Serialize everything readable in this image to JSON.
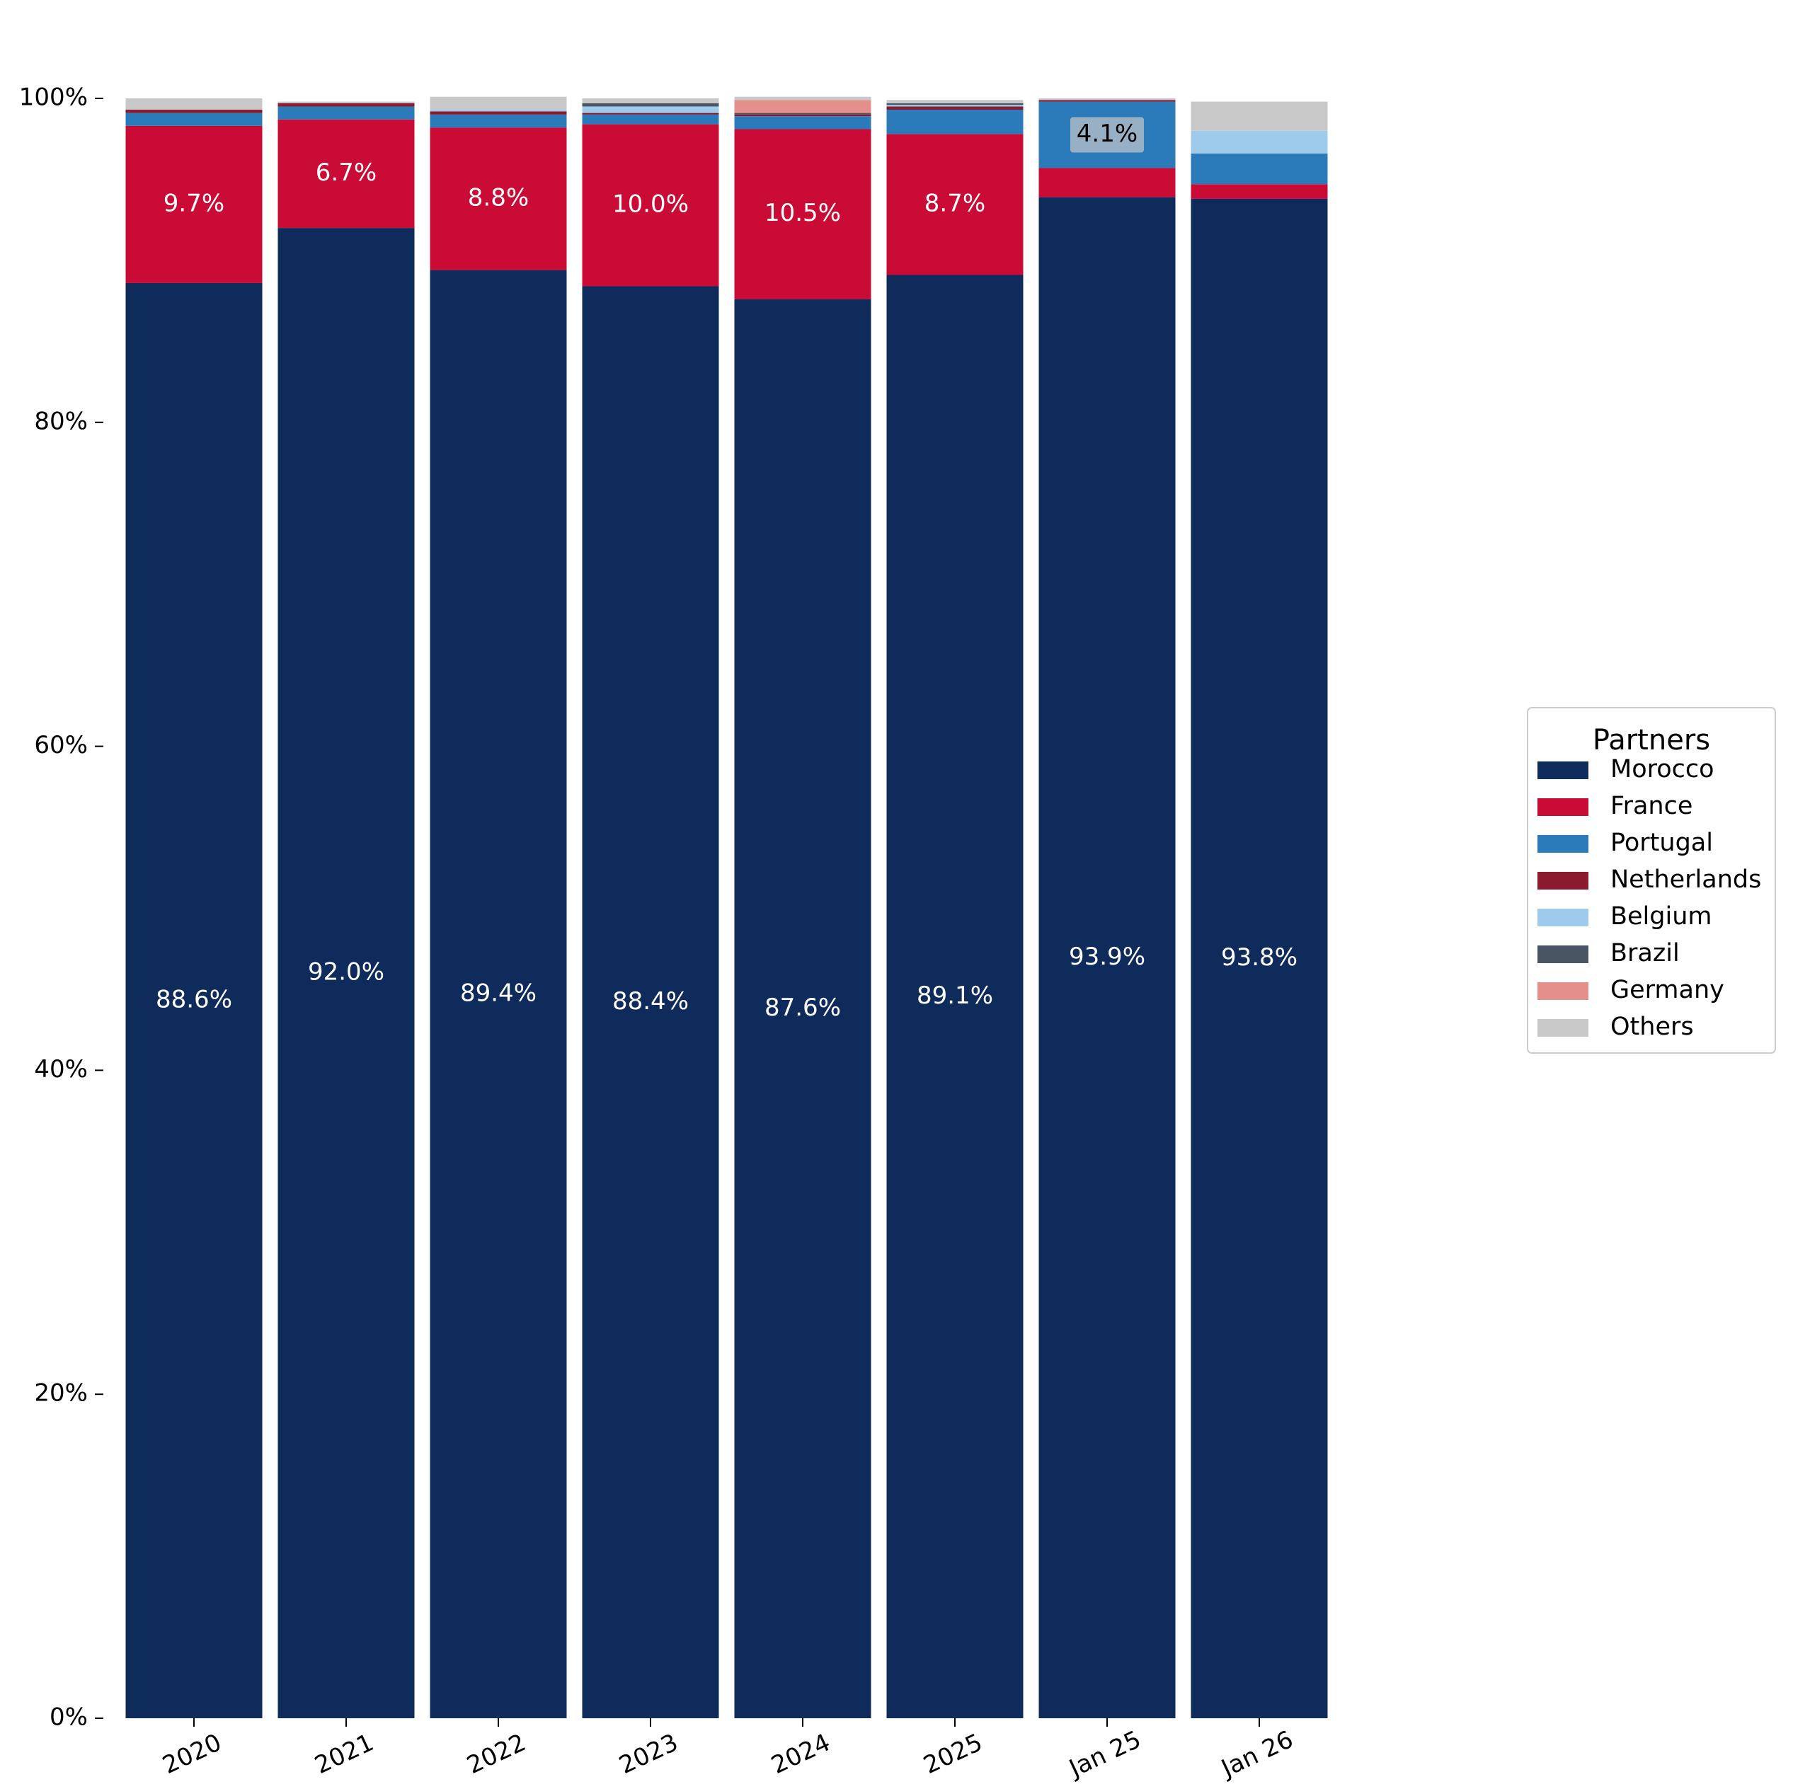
{
  "chart_data": {
    "type": "bar",
    "stacked": true,
    "categories": [
      "2020",
      "2021",
      "2022",
      "2023",
      "2024",
      "2025",
      "Jan 25",
      "Jan 26"
    ],
    "ylim": [
      0,
      100
    ],
    "y_ticks": [
      0,
      20,
      40,
      60,
      80,
      100
    ],
    "y_tick_labels": [
      "0%",
      "20%",
      "40%",
      "60%",
      "80%",
      "100%"
    ],
    "title": "",
    "xlabel": "",
    "ylabel": "",
    "grid": false,
    "legend": {
      "title": "Partners",
      "placement": "right"
    },
    "series": [
      {
        "name": "Morocco",
        "color": "#0e2b5c",
        "values": [
          88.6,
          92.0,
          89.4,
          88.4,
          87.6,
          89.1,
          93.9,
          93.8
        ]
      },
      {
        "name": "France",
        "color": "#c90b35",
        "values": [
          9.7,
          6.7,
          8.8,
          10.0,
          10.5,
          8.7,
          1.8,
          0.9
        ]
      },
      {
        "name": "Portugal",
        "color": "#2b7bbb",
        "values": [
          0.8,
          0.8,
          0.8,
          0.6,
          0.8,
          1.5,
          4.1,
          1.9
        ]
      },
      {
        "name": "Netherlands",
        "color": "#8b1a2e",
        "values": [
          0.2,
          0.2,
          0.2,
          0.1,
          0.1,
          0.2,
          0.1,
          0.0
        ]
      },
      {
        "name": "Belgium",
        "color": "#9ecbec",
        "values": [
          0.0,
          0.0,
          0.1,
          0.4,
          0.0,
          0.1,
          0.0,
          1.4
        ]
      },
      {
        "name": "Brazil",
        "color": "#4a5563",
        "values": [
          0.0,
          0.0,
          0.0,
          0.2,
          0.1,
          0.1,
          0.0,
          0.0
        ]
      },
      {
        "name": "Germany",
        "color": "#e58f8c",
        "values": [
          0.0,
          0.0,
          0.0,
          0.0,
          0.8,
          0.0,
          0.0,
          0.0
        ]
      },
      {
        "name": "Others",
        "color": "#c8c8c8",
        "values": [
          0.7,
          0.1,
          0.8,
          0.3,
          0.2,
          0.2,
          0.1,
          1.8
        ]
      }
    ],
    "data_labels": [
      {
        "series": "Morocco",
        "category": "2020",
        "text": "88.6%"
      },
      {
        "series": "Morocco",
        "category": "2021",
        "text": "92.0%"
      },
      {
        "series": "Morocco",
        "category": "2022",
        "text": "89.4%"
      },
      {
        "series": "Morocco",
        "category": "2023",
        "text": "88.4%"
      },
      {
        "series": "Morocco",
        "category": "2024",
        "text": "87.6%"
      },
      {
        "series": "Morocco",
        "category": "2025",
        "text": "89.1%"
      },
      {
        "series": "Morocco",
        "category": "Jan 25",
        "text": "93.9%"
      },
      {
        "series": "Morocco",
        "category": "Jan 26",
        "text": "93.8%"
      },
      {
        "series": "France",
        "category": "2020",
        "text": "9.7%"
      },
      {
        "series": "France",
        "category": "2021",
        "text": "6.7%"
      },
      {
        "series": "France",
        "category": "2022",
        "text": "8.8%"
      },
      {
        "series": "France",
        "category": "2023",
        "text": "10.0%"
      },
      {
        "series": "France",
        "category": "2024",
        "text": "10.5%"
      },
      {
        "series": "France",
        "category": "2025",
        "text": "8.7%"
      },
      {
        "series": "Portugal",
        "category": "Jan 25",
        "text": "4.1%",
        "boxed": true
      }
    ]
  }
}
